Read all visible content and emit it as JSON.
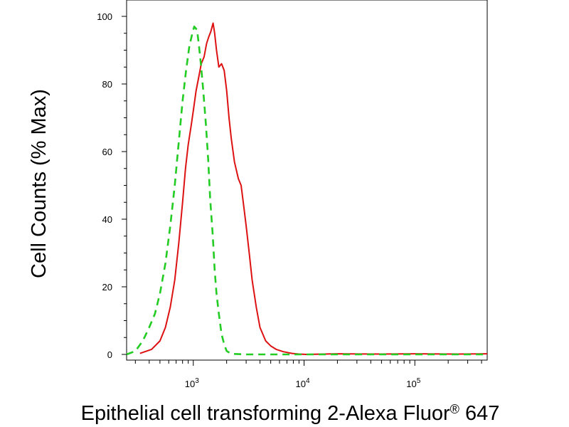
{
  "chart_data": {
    "type": "line",
    "xscale": "log",
    "ylabel": "Cell Counts (% Max)",
    "xlabel": "Epithelial cell transforming 2-Alexa Fluor® 647",
    "xlabel_main": "Epithelial cell transforming 2-Alexa Fluor",
    "xlabel_reg": "®",
    "xlabel_tail": " 647",
    "ylim": [
      0,
      100
    ],
    "xlim": [
      250,
      450000
    ],
    "y_ticks": [
      {
        "value": 0,
        "label": "0"
      },
      {
        "value": 20,
        "label": "20"
      },
      {
        "value": 40,
        "label": "40"
      },
      {
        "value": 60,
        "label": "60"
      },
      {
        "value": 80,
        "label": "80"
      },
      {
        "value": 100,
        "label": "100"
      }
    ],
    "x_ticks": [
      {
        "value": 1000,
        "base": "10",
        "exp": "3"
      },
      {
        "value": 10000,
        "base": "10",
        "exp": "4"
      },
      {
        "value": 100000,
        "base": "10",
        "exp": "5"
      }
    ],
    "series": [
      {
        "color": "#dd1111",
        "style": "solid",
        "points": [
          [
            330,
            0.3
          ],
          [
            420,
            1.5
          ],
          [
            500,
            4
          ],
          [
            560,
            8
          ],
          [
            620,
            14
          ],
          [
            680,
            22
          ],
          [
            740,
            33
          ],
          [
            800,
            45
          ],
          [
            850,
            55
          ],
          [
            900,
            62
          ],
          [
            960,
            68
          ],
          [
            1010,
            73
          ],
          [
            1060,
            78
          ],
          [
            1120,
            82
          ],
          [
            1180,
            86
          ],
          [
            1250,
            88
          ],
          [
            1320,
            92
          ],
          [
            1380,
            94
          ],
          [
            1440,
            95.5
          ],
          [
            1480,
            97
          ],
          [
            1510,
            98
          ],
          [
            1560,
            95
          ],
          [
            1620,
            90
          ],
          [
            1700,
            85
          ],
          [
            1800,
            86
          ],
          [
            1900,
            84
          ],
          [
            2000,
            78
          ],
          [
            2100,
            70
          ],
          [
            2200,
            64
          ],
          [
            2350,
            57
          ],
          [
            2550,
            52
          ],
          [
            2700,
            50
          ],
          [
            2850,
            44
          ],
          [
            3000,
            38
          ],
          [
            3200,
            30
          ],
          [
            3400,
            22
          ],
          [
            3700,
            14
          ],
          [
            4000,
            8
          ],
          [
            4500,
            4
          ],
          [
            5000,
            2.5
          ],
          [
            5600,
            1.5
          ],
          [
            6500,
            0.8
          ],
          [
            7800,
            0.3
          ],
          [
            9000,
            0.1
          ],
          [
            10500,
            0
          ],
          [
            20000,
            0.2
          ],
          [
            50000,
            0.1
          ],
          [
            100000,
            0.2
          ],
          [
            250000,
            0.1
          ],
          [
            450000,
            0.2
          ]
        ]
      },
      {
        "color": "#22cc22",
        "style": "dashed",
        "points": [
          [
            250,
            0
          ],
          [
            300,
            1
          ],
          [
            350,
            4
          ],
          [
            400,
            8
          ],
          [
            450,
            12
          ],
          [
            500,
            18
          ],
          [
            560,
            27
          ],
          [
            620,
            38
          ],
          [
            680,
            50
          ],
          [
            740,
            63
          ],
          [
            800,
            75
          ],
          [
            860,
            84
          ],
          [
            920,
            91
          ],
          [
            980,
            95
          ],
          [
            1020,
            97
          ],
          [
            1080,
            96
          ],
          [
            1120,
            92
          ],
          [
            1170,
            86
          ],
          [
            1230,
            78
          ],
          [
            1300,
            68
          ],
          [
            1360,
            58
          ],
          [
            1420,
            46
          ],
          [
            1500,
            35
          ],
          [
            1560,
            25
          ],
          [
            1620,
            18
          ],
          [
            1700,
            12
          ],
          [
            1800,
            6
          ],
          [
            1900,
            3
          ],
          [
            2000,
            1
          ],
          [
            2200,
            0.2
          ],
          [
            3000,
            0
          ],
          [
            100000,
            0
          ],
          [
            450000,
            0
          ]
        ]
      }
    ]
  }
}
